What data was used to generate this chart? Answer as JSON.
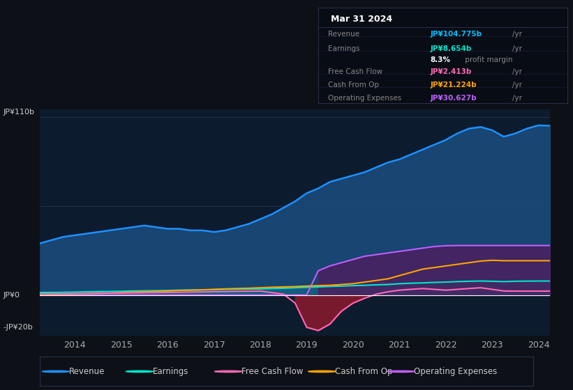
{
  "bg_color": "#0d1117",
  "chart_bg": "#0d1b2e",
  "title_box_date": "Mar 31 2024",
  "tooltip": {
    "Revenue": {
      "value": "JP¥104.775b /yr",
      "color": "#00bfff"
    },
    "Earnings": {
      "value": "JP¥8.654b /yr",
      "color": "#00e5cc"
    },
    "profit_margin": {
      "value": "8.3% profit margin",
      "color": "#ffffff"
    },
    "Free Cash Flow": {
      "value": "JP¥2.413b /yr",
      "color": "#ff69b4"
    },
    "Cash From Op": {
      "value": "JP¥21.224b /yr",
      "color": "#ffa500"
    },
    "Operating Expenses": {
      "value": "JP¥30.627b /yr",
      "color": "#bf5fff"
    }
  },
  "ylabel_top": "JP¥110b",
  "ylabel_zero": "JP¥0",
  "ylabel_bottom": "-JP¥20b",
  "years": [
    2013.25,
    2013.5,
    2013.75,
    2014.0,
    2014.25,
    2014.5,
    2014.75,
    2015.0,
    2015.25,
    2015.5,
    2015.75,
    2016.0,
    2016.25,
    2016.5,
    2016.75,
    2017.0,
    2017.25,
    2017.5,
    2017.75,
    2018.0,
    2018.25,
    2018.5,
    2018.75,
    2019.0,
    2019.25,
    2019.5,
    2019.75,
    2020.0,
    2020.25,
    2020.5,
    2020.75,
    2021.0,
    2021.25,
    2021.5,
    2021.75,
    2022.0,
    2022.25,
    2022.5,
    2022.75,
    2023.0,
    2023.25,
    2023.5,
    2023.75,
    2024.0,
    2024.25
  ],
  "revenue": [
    32,
    34,
    36,
    37,
    38,
    39,
    40,
    41,
    42,
    43,
    42,
    41,
    41,
    40,
    40,
    39,
    40,
    42,
    44,
    47,
    50,
    54,
    58,
    63,
    66,
    70,
    72,
    74,
    76,
    79,
    82,
    84,
    87,
    90,
    93,
    96,
    100,
    103,
    104,
    102,
    98,
    100,
    103,
    105,
    104.775
  ],
  "earnings": [
    1.5,
    1.6,
    1.7,
    1.8,
    2.0,
    2.1,
    2.2,
    2.3,
    2.5,
    2.6,
    2.7,
    2.8,
    3.0,
    3.1,
    3.2,
    3.3,
    3.5,
    3.6,
    3.7,
    3.8,
    4.0,
    4.2,
    4.5,
    4.8,
    5.0,
    5.3,
    5.5,
    5.8,
    6.0,
    6.3,
    6.5,
    7.0,
    7.3,
    7.5,
    7.8,
    8.0,
    8.3,
    8.5,
    8.654,
    8.5,
    8.3,
    8.5,
    8.6,
    8.654,
    8.654
  ],
  "free_cash_flow": [
    0.5,
    0.6,
    0.7,
    0.8,
    0.9,
    1.0,
    1.1,
    1.2,
    1.3,
    1.4,
    1.5,
    1.6,
    1.7,
    1.8,
    1.9,
    2.0,
    2.1,
    2.2,
    2.3,
    2.4,
    1.5,
    0.5,
    -5.0,
    -20.0,
    -22.0,
    -18.0,
    -10.0,
    -5.0,
    -2.0,
    0.5,
    2.0,
    3.0,
    3.5,
    4.0,
    3.5,
    3.0,
    3.5,
    4.0,
    4.5,
    3.5,
    2.5,
    2.413,
    2.413,
    2.413,
    2.413
  ],
  "cash_from_op": [
    0.3,
    0.4,
    0.5,
    0.6,
    0.8,
    1.0,
    1.2,
    1.5,
    1.8,
    2.0,
    2.2,
    2.5,
    2.8,
    3.0,
    3.2,
    3.5,
    3.8,
    4.0,
    4.2,
    4.5,
    4.8,
    5.0,
    5.2,
    5.5,
    5.8,
    6.0,
    6.5,
    7.0,
    8.0,
    9.0,
    10.0,
    12.0,
    14.0,
    16.0,
    17.0,
    18.0,
    19.0,
    20.0,
    21.0,
    21.5,
    21.224,
    21.224,
    21.224,
    21.224,
    21.224
  ],
  "operating_expenses": [
    0,
    0,
    0,
    0,
    0,
    0,
    0,
    0,
    0,
    0,
    0,
    0,
    0,
    0,
    0,
    0,
    0,
    0,
    0,
    0,
    0,
    0,
    0,
    0,
    15.0,
    18.0,
    20.0,
    22.0,
    24.0,
    25.0,
    26.0,
    27.0,
    28.0,
    29.0,
    30.0,
    30.5,
    30.627,
    30.627,
    30.627,
    30.627,
    30.627,
    30.627,
    30.627,
    30.627,
    30.627
  ],
  "xticks": [
    2014,
    2015,
    2016,
    2017,
    2018,
    2019,
    2020,
    2021,
    2022,
    2023,
    2024
  ],
  "ylim": [
    -25,
    115
  ],
  "revenue_color": "#1e90ff",
  "revenue_fill": "#1a4a7a",
  "earnings_color": "#00e5cc",
  "fcf_color": "#ff69b4",
  "fcf_fill_neg": "#8b1a2e",
  "cashop_color": "#ffa500",
  "opex_color": "#bf5fff",
  "opex_fill": "#4a2060",
  "legend_items": [
    {
      "label": "Revenue",
      "color": "#1e90ff"
    },
    {
      "label": "Earnings",
      "color": "#00e5cc"
    },
    {
      "label": "Free Cash Flow",
      "color": "#ff69b4"
    },
    {
      "label": "Cash From Op",
      "color": "#ffa500"
    },
    {
      "label": "Operating Expenses",
      "color": "#bf5fff"
    }
  ]
}
